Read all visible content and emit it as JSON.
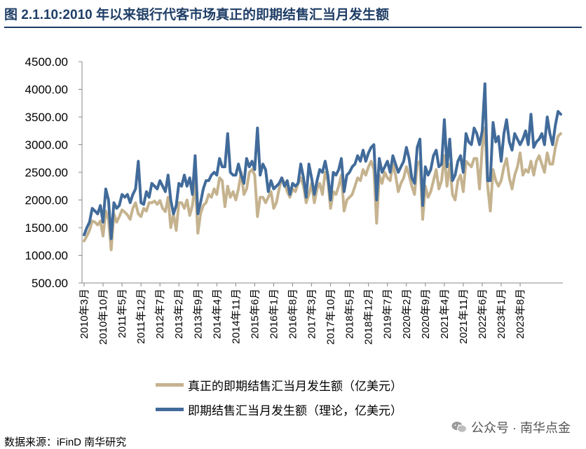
{
  "title": "图 2.1.10:2010 年以来银行代客市场真正的即期结售汇当月发生额",
  "source": "数据来源：iFinD 南华研究",
  "watermark": "公众号 · 南华点金",
  "colors": {
    "title": "#1f3e66",
    "theory": "#416b9a",
    "real": "#c5b38f"
  },
  "chart_data": {
    "type": "line",
    "ylim": [
      500,
      4500
    ],
    "yticks": [
      "500.00",
      "1000.00",
      "1500.00",
      "2000.00",
      "2500.00",
      "3000.00",
      "3500.00",
      "4000.00",
      "4500.00"
    ],
    "x_tick_labels": [
      "2010年3月",
      "2010年10月",
      "2011年5月",
      "2011年12月",
      "2012年7月",
      "2013年2月",
      "2013年9月",
      "2014年4月",
      "2014年11月",
      "2015年6月",
      "2016年1月",
      "2016年8月",
      "2017年3月",
      "2017年10月",
      "2018年5月",
      "2018年12月",
      "2019年7月",
      "2020年2月",
      "2020年9月",
      "2021年4月",
      "2021年11月",
      "2022年6月",
      "2023年1月",
      "2023年8月"
    ],
    "x_start": "2010年3月",
    "grid": false,
    "legend_position": "bottom",
    "series": [
      {
        "name": "真正的即期结售汇当月发生额（亿美元）",
        "color": "#c5b38f",
        "values": [
          1260,
          1350,
          1450,
          1620,
          1600,
          1550,
          1620,
          1350,
          1800,
          1650,
          1100,
          1750,
          1600,
          1700,
          1820,
          1780,
          1730,
          1650,
          1850,
          1950,
          1750,
          1700,
          1850,
          1800,
          1950,
          1950,
          1980,
          1920,
          1990,
          1850,
          1790,
          2050,
          1500,
          1750,
          1450,
          1950,
          1950,
          1850,
          2000,
          1720,
          1900,
          2300,
          1400,
          1750,
          1900,
          1950,
          2100,
          2050,
          2200,
          2100,
          2400,
          2350,
          1880,
          2250,
          2050,
          2150,
          2000,
          2200,
          2500,
          2100,
          2200,
          2500,
          2550,
          2450,
          1700,
          2050,
          2050,
          1950,
          2050,
          2150,
          1850,
          1950,
          2200,
          2400,
          2300,
          2150,
          2050,
          2200,
          2150,
          2300,
          2400,
          2250,
          1950,
          2100,
          2300,
          1950,
          2200,
          2300,
          2100,
          2500,
          2350,
          1850,
          2150,
          2100,
          2250,
          2450,
          1800,
          2000,
          2050,
          2100,
          2250,
          2400,
          2350,
          2550,
          2450,
          2600,
          2700,
          2550,
          1580,
          2450,
          2300,
          2500,
          2400,
          2350,
          2650,
          2450,
          2150,
          2300,
          2400,
          2600,
          2450,
          2250,
          2100,
          2650,
          2700,
          1650,
          2250,
          2050,
          2150,
          2350,
          2550,
          2200,
          2350,
          2800,
          2250,
          2650,
          2100,
          2000,
          2350,
          2450,
          2150,
          2700,
          2650,
          2600,
          2750,
          2750,
          2200,
          2950,
          3300,
          2250,
          1800,
          2550,
          2350,
          2250,
          2350,
          2600,
          2750,
          2400,
          2200,
          2450,
          2600,
          2850,
          2450,
          2550,
          2500,
          2700,
          2450,
          2700,
          2800,
          2650,
          2500,
          2850,
          2650,
          2650,
          2950,
          3150,
          3200
        ]
      },
      {
        "name": "即期结售汇当月发生额（理论，亿美元）",
        "color": "#416b9a",
        "values": [
          1370,
          1500,
          1600,
          1850,
          1800,
          1750,
          1900,
          1600,
          2200,
          2000,
          1300,
          1950,
          1850,
          1900,
          2100,
          2050,
          2100,
          1950,
          2100,
          2200,
          2700,
          1950,
          1920,
          2150,
          2050,
          2300,
          2250,
          2200,
          2350,
          2250,
          2150,
          2450,
          2000,
          1750,
          1900,
          2300,
          2250,
          2450,
          2250,
          2400,
          2100,
          2800,
          1750,
          1950,
          2200,
          2350,
          2350,
          2450,
          2500,
          2450,
          2750,
          2600,
          2600,
          3200,
          2500,
          2450,
          2450,
          2650,
          2450,
          2300,
          2750,
          2600,
          2700,
          2550,
          3300,
          2450,
          2650,
          2550,
          2150,
          2350,
          2200,
          2250,
          2300,
          2400,
          2250,
          2350,
          2100,
          2300,
          2250,
          2300,
          2650,
          2400,
          2050,
          2650,
          2400,
          2100,
          2350,
          2550,
          2500,
          2700,
          2450,
          2000,
          2500,
          2450,
          2550,
          2750,
          2150,
          2450,
          2500,
          2600,
          2650,
          2800,
          2700,
          2900,
          2700,
          2850,
          2950,
          3000,
          2000,
          2750,
          2500,
          2600,
          2700,
          2500,
          2800,
          2650,
          2500,
          2600,
          2700,
          2950,
          2750,
          2400,
          2300,
          2950,
          3100,
          1900,
          2600,
          2450,
          2550,
          2800,
          2900,
          2600,
          2650,
          3450,
          2600,
          3100,
          2350,
          2450,
          2700,
          2800,
          2500,
          3200,
          3050,
          3000,
          3300,
          3200,
          3000,
          3250,
          4100,
          2350,
          2350,
          3400,
          3050,
          3150,
          2700,
          3200,
          3450,
          3050,
          2900,
          3200,
          3100,
          3000,
          3100,
          3250,
          3000,
          3550,
          2950,
          3050,
          3100,
          3200,
          3000,
          3500,
          3200,
          3000,
          3350,
          3600,
          3550
        ]
      }
    ]
  }
}
